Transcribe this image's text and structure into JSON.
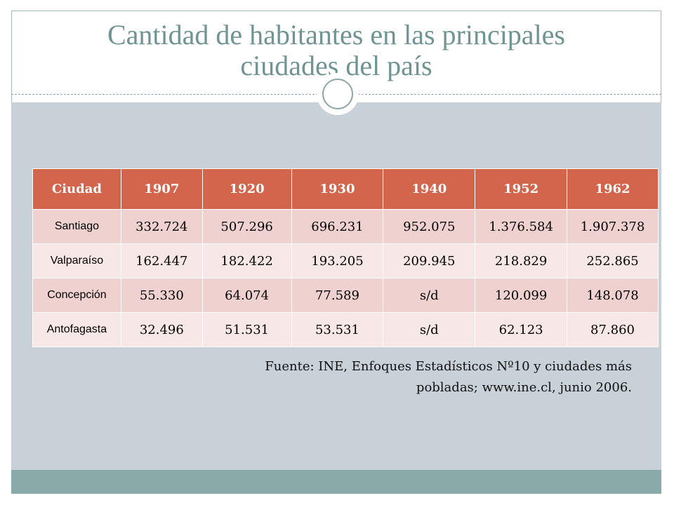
{
  "title": {
    "line1": "Cantidad de habitantes en las principales",
    "line2": "ciudades del país"
  },
  "table": {
    "headers": [
      "Ciudad",
      "1907",
      "1920",
      "1930",
      "1940",
      "1952",
      "1962"
    ],
    "rows": [
      [
        "Santiago",
        "332.724",
        "507.296",
        "696.231",
        "952.075",
        "1.376.584",
        "1.907.378"
      ],
      [
        "Valparaíso",
        "162.447",
        "182.422",
        "193.205",
        "209.945",
        "218.829",
        "252.865"
      ],
      [
        "Concepción",
        "55.330",
        "64.074",
        "77.589",
        "s/d",
        "120.099",
        "148.078"
      ],
      [
        "Antofagasta",
        "32.496",
        "51.531",
        "53.531",
        "s/d",
        "62.123",
        "87.860"
      ]
    ]
  },
  "source": {
    "line1": "Fuente: INE, Enfoques Estadísticos Nº10 y ciudades más",
    "line2": "pobladas; www.ine.cl, junio 2006."
  },
  "colors": {
    "header_bg": "#d2654b",
    "row_odd": "#efd2cf",
    "row_even": "#f7e7e6",
    "title": "#6f9493",
    "panel": "#c7d1d7",
    "footer": "#8aaaa9"
  }
}
